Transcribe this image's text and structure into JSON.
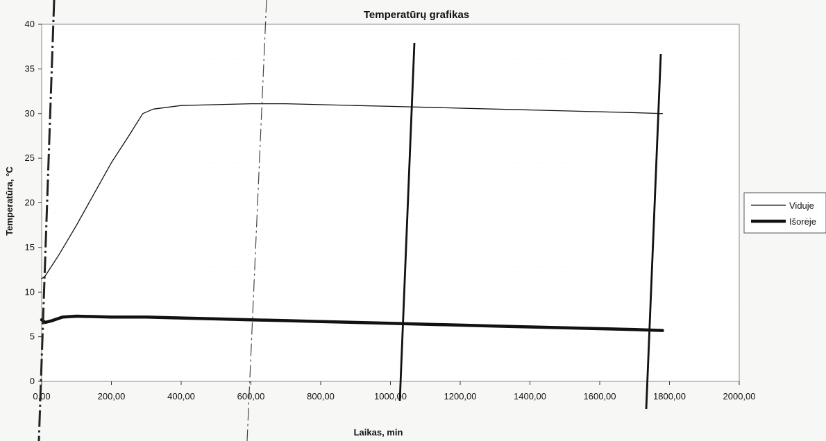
{
  "chart_data": {
    "type": "line",
    "title": "Temperatūrų grafikas",
    "xlabel": "Laikas, min",
    "ylabel": "Temperatūra, °C",
    "xlim": [
      0,
      2000
    ],
    "ylim": [
      0,
      40
    ],
    "x_ticks": [
      0,
      200,
      400,
      600,
      800,
      1000,
      1200,
      1400,
      1600,
      1800,
      2000
    ],
    "x_tick_labels": [
      "0,00",
      "200,00",
      "400,00",
      "600,00",
      "800,00",
      "1000,00",
      "1200,00",
      "1400,00",
      "1600,00",
      "1800,00",
      "2000,00"
    ],
    "y_ticks": [
      0,
      5,
      10,
      15,
      20,
      25,
      30,
      35,
      40
    ],
    "y_tick_labels": [
      "0",
      "5",
      "10",
      "15",
      "20",
      "25",
      "30",
      "35",
      "40"
    ],
    "grid": false,
    "legend_position": "right",
    "series": [
      {
        "name": "Viduje",
        "color": "#111111",
        "style": "thin",
        "x": [
          0,
          10,
          50,
          100,
          150,
          200,
          250,
          290,
          320,
          400,
          500,
          600,
          700,
          800,
          900,
          1000,
          1100,
          1200,
          1300,
          1400,
          1500,
          1600,
          1700,
          1780
        ],
        "y": [
          11.5,
          11.8,
          14.2,
          17.5,
          21.0,
          24.5,
          27.5,
          30.0,
          30.5,
          30.9,
          31.0,
          31.1,
          31.1,
          31.0,
          30.9,
          30.8,
          30.7,
          30.6,
          30.5,
          30.4,
          30.3,
          30.2,
          30.1,
          30.0
        ]
      },
      {
        "name": "Išorėje",
        "color": "#111111",
        "style": "thick",
        "x": [
          0,
          10,
          30,
          60,
          100,
          200,
          300,
          400,
          500,
          600,
          700,
          800,
          900,
          1000,
          1100,
          1200,
          1300,
          1400,
          1500,
          1600,
          1700,
          1780
        ],
        "y": [
          6.9,
          6.6,
          6.8,
          7.2,
          7.3,
          7.2,
          7.2,
          7.1,
          7.0,
          6.9,
          6.8,
          6.7,
          6.6,
          6.5,
          6.4,
          6.3,
          6.2,
          6.1,
          6.0,
          5.9,
          5.8,
          5.7
        ]
      }
    ]
  }
}
